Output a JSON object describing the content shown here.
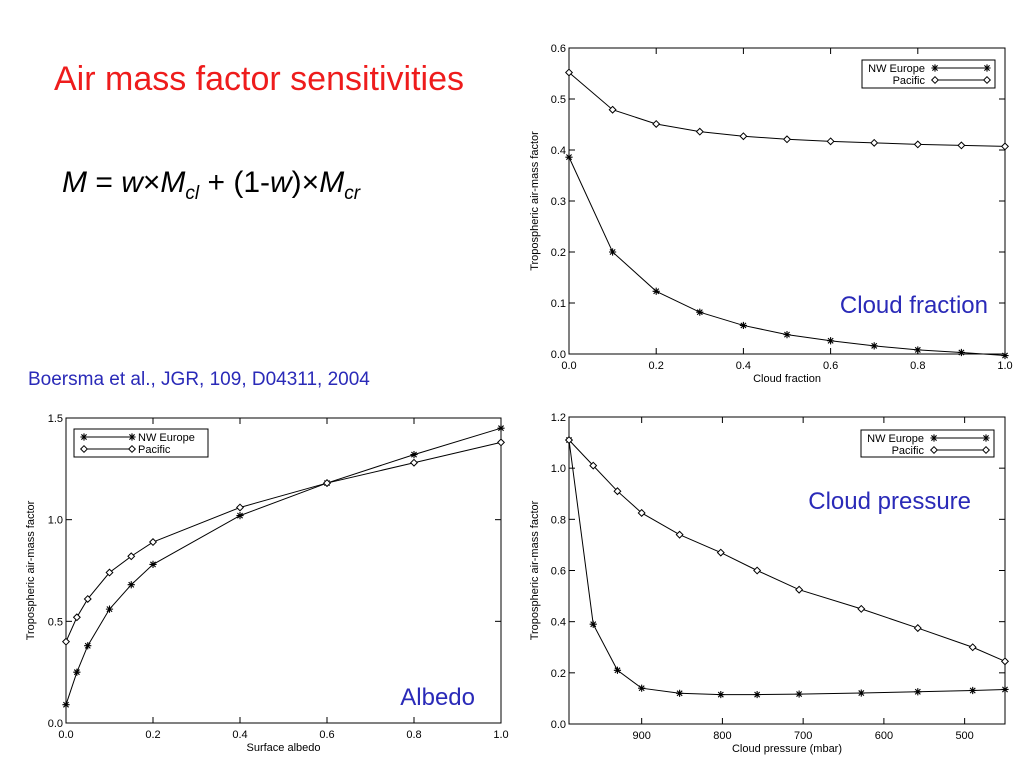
{
  "slide": {
    "title": "Air mass factor sensitivities",
    "formula": {
      "M": "M",
      "equals": " = ",
      "w": "w",
      "times1": "×",
      "M1": "M",
      "sub_cl": "cl",
      "plus": " + (1-",
      "w2": "w",
      "close": ")",
      "times2": "×",
      "M2": "M",
      "sub_cr": "cr"
    },
    "citation": "Boersma et al., JGR, 109, D04311, 2004"
  },
  "colors": {
    "title": "#ee1c1c",
    "annotation": "#2a2ab8",
    "line": "#000000"
  },
  "chart_data": [
    {
      "type": "line",
      "annotation": "Cloud fraction",
      "xlabel": "Cloud fraction",
      "ylabel": "Tropospheric air-mass factor",
      "xlim": [
        0.0,
        1.0
      ],
      "ylim": [
        0.0,
        0.6
      ],
      "xticks": [
        "0.0",
        "0.2",
        "0.4",
        "0.6",
        "0.8",
        "1.0"
      ],
      "yticks": [
        "0.0",
        "0.1",
        "0.2",
        "0.3",
        "0.4",
        "0.5",
        "0.6"
      ],
      "x": [
        0.0,
        0.1,
        0.2,
        0.3,
        0.4,
        0.5,
        0.6,
        0.7,
        0.8,
        0.9,
        1.0
      ],
      "legend": "top-right",
      "grid": false,
      "series": [
        {
          "name": "NW Europe",
          "marker": "asterisk",
          "values": [
            0.386,
            0.2,
            0.123,
            0.082,
            0.056,
            0.038,
            0.026,
            0.016,
            0.008,
            0.003,
            -0.003
          ]
        },
        {
          "name": "Pacific",
          "marker": "diamond",
          "values": [
            0.552,
            0.479,
            0.451,
            0.436,
            0.427,
            0.421,
            0.417,
            0.414,
            0.411,
            0.409,
            0.407
          ]
        }
      ]
    },
    {
      "type": "line",
      "annotation": "Albedo",
      "xlabel": "Surface albedo",
      "ylabel": "Tropospheric air-mass factor",
      "xlim": [
        0.0,
        1.0
      ],
      "ylim": [
        0.0,
        1.5
      ],
      "xticks": [
        "0.0",
        "0.2",
        "0.4",
        "0.6",
        "0.8",
        "1.0"
      ],
      "yticks": [
        "0.0",
        "0.5",
        "1.0",
        "1.5"
      ],
      "legend": "top-left",
      "grid": false,
      "series": [
        {
          "name": "NW Europe",
          "marker": "asterisk",
          "x": [
            0.0,
            0.025,
            0.05,
            0.1,
            0.15,
            0.2,
            0.4,
            0.6,
            0.8,
            1.0
          ],
          "values": [
            0.09,
            0.25,
            0.38,
            0.56,
            0.68,
            0.78,
            1.02,
            1.18,
            1.32,
            1.45
          ]
        },
        {
          "name": "Pacific",
          "marker": "diamond",
          "x": [
            0.0,
            0.025,
            0.05,
            0.1,
            0.15,
            0.2,
            0.4,
            0.6,
            0.8,
            1.0
          ],
          "values": [
            0.4,
            0.52,
            0.61,
            0.74,
            0.82,
            0.89,
            1.06,
            1.18,
            1.28,
            1.38
          ]
        }
      ]
    },
    {
      "type": "line",
      "annotation": "Cloud pressure",
      "xlabel": "Cloud pressure (mbar)",
      "ylabel": "Tropospheric air-mass factor",
      "xlim": [
        990,
        450
      ],
      "ylim": [
        0.0,
        1.2
      ],
      "xtick_values": [
        900,
        800,
        700,
        600,
        500
      ],
      "xticks": [
        "900",
        "800",
        "700",
        "600",
        "500"
      ],
      "ytick_values": [
        0.0,
        0.2,
        0.4,
        0.6,
        0.8,
        1.0,
        1.2
      ],
      "yticks": [
        "0.0",
        "0.2",
        "0.4",
        "0.6",
        "0.8",
        "1.0",
        "1.2"
      ],
      "x": [
        990,
        960,
        930,
        900,
        853,
        802,
        757,
        705,
        628,
        558,
        490,
        450
      ],
      "legend": "top-right",
      "grid": false,
      "series": [
        {
          "name": "NW Europe",
          "marker": "asterisk",
          "values": [
            1.11,
            0.39,
            0.21,
            0.14,
            0.12,
            0.115,
            0.115,
            0.117,
            0.121,
            0.126,
            0.131,
            0.135
          ]
        },
        {
          "name": "Pacific",
          "marker": "diamond",
          "values": [
            1.11,
            1.01,
            0.91,
            0.825,
            0.74,
            0.67,
            0.6,
            0.525,
            0.45,
            0.375,
            0.3,
            0.245
          ]
        }
      ]
    }
  ]
}
